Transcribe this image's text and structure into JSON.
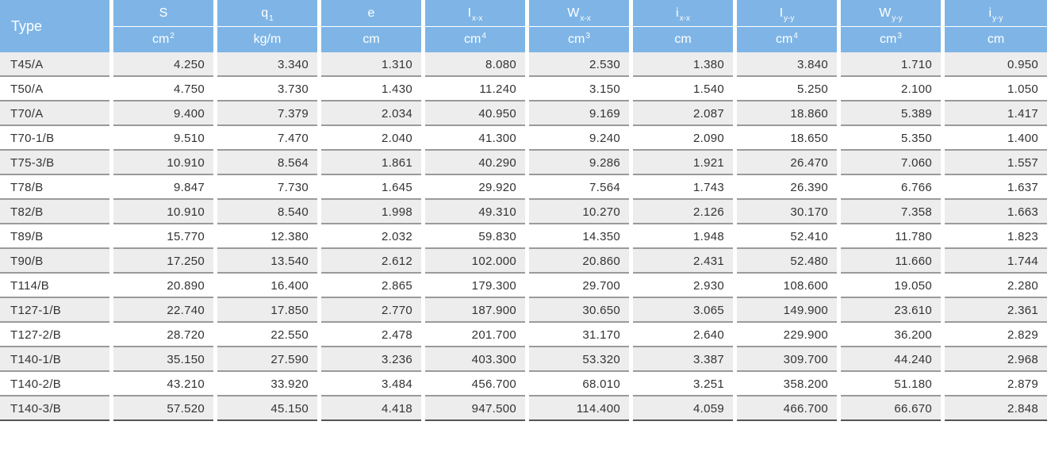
{
  "table": {
    "type_header": "Type",
    "columns": [
      {
        "key": "S",
        "symbol": "S",
        "sub": "",
        "unit": "cm",
        "unit_sup": "2"
      },
      {
        "key": "q1",
        "symbol": "q",
        "sub": "1",
        "unit": "kg/m",
        "unit_sup": ""
      },
      {
        "key": "e",
        "symbol": "e",
        "sub": "",
        "unit": "cm",
        "unit_sup": ""
      },
      {
        "key": "Ixx",
        "symbol": "I",
        "sub": "x-x",
        "unit": "cm",
        "unit_sup": "4"
      },
      {
        "key": "Wxx",
        "symbol": "W",
        "sub": "x-x",
        "unit": "cm",
        "unit_sup": "3"
      },
      {
        "key": "ixx",
        "symbol": "i",
        "sub": "x-x",
        "unit": "cm",
        "unit_sup": ""
      },
      {
        "key": "Iyy",
        "symbol": "I",
        "sub": "y-y",
        "unit": "cm",
        "unit_sup": "4"
      },
      {
        "key": "Wyy",
        "symbol": "W",
        "sub": "y-y",
        "unit": "cm",
        "unit_sup": "3"
      },
      {
        "key": "iyy",
        "symbol": "i",
        "sub": "y-y",
        "unit": "cm",
        "unit_sup": ""
      }
    ],
    "rows": [
      {
        "type": "T45/A",
        "values": [
          "4.250",
          "3.340",
          "1.310",
          "8.080",
          "2.530",
          "1.380",
          "3.840",
          "1.710",
          "0.950"
        ]
      },
      {
        "type": "T50/A",
        "values": [
          "4.750",
          "3.730",
          "1.430",
          "11.240",
          "3.150",
          "1.540",
          "5.250",
          "2.100",
          "1.050"
        ]
      },
      {
        "type": "T70/A",
        "values": [
          "9.400",
          "7.379",
          "2.034",
          "40.950",
          "9.169",
          "2.087",
          "18.860",
          "5.389",
          "1.417"
        ]
      },
      {
        "type": "T70-1/B",
        "values": [
          "9.510",
          "7.470",
          "2.040",
          "41.300",
          "9.240",
          "2.090",
          "18.650",
          "5.350",
          "1.400"
        ]
      },
      {
        "type": "T75-3/B",
        "values": [
          "10.910",
          "8.564",
          "1.861",
          "40.290",
          "9.286",
          "1.921",
          "26.470",
          "7.060",
          "1.557"
        ]
      },
      {
        "type": "T78/B",
        "values": [
          "9.847",
          "7.730",
          "1.645",
          "29.920",
          "7.564",
          "1.743",
          "26.390",
          "6.766",
          "1.637"
        ]
      },
      {
        "type": "T82/B",
        "values": [
          "10.910",
          "8.540",
          "1.998",
          "49.310",
          "10.270",
          "2.126",
          "30.170",
          "7.358",
          "1.663"
        ]
      },
      {
        "type": "T89/B",
        "values": [
          "15.770",
          "12.380",
          "2.032",
          "59.830",
          "14.350",
          "1.948",
          "52.410",
          "11.780",
          "1.823"
        ]
      },
      {
        "type": "T90/B",
        "values": [
          "17.250",
          "13.540",
          "2.612",
          "102.000",
          "20.860",
          "2.431",
          "52.480",
          "11.660",
          "1.744"
        ]
      },
      {
        "type": "T114/B",
        "values": [
          "20.890",
          "16.400",
          "2.865",
          "179.300",
          "29.700",
          "2.930",
          "108.600",
          "19.050",
          "2.280"
        ]
      },
      {
        "type": "T127-1/B",
        "values": [
          "22.740",
          "17.850",
          "2.770",
          "187.900",
          "30.650",
          "3.065",
          "149.900",
          "23.610",
          "2.361"
        ]
      },
      {
        "type": "T127-2/B",
        "values": [
          "28.720",
          "22.550",
          "2.478",
          "201.700",
          "31.170",
          "2.640",
          "229.900",
          "36.200",
          "2.829"
        ]
      },
      {
        "type": "T140-1/B",
        "values": [
          "35.150",
          "27.590",
          "3.236",
          "403.300",
          "53.320",
          "3.387",
          "309.700",
          "44.240",
          "2.968"
        ]
      },
      {
        "type": "T140-2/B",
        "values": [
          "43.210",
          "33.920",
          "3.484",
          "456.700",
          "68.010",
          "3.251",
          "358.200",
          "51.180",
          "2.879"
        ]
      },
      {
        "type": "T140-3/B",
        "values": [
          "57.520",
          "45.150",
          "4.418",
          "947.500",
          "114.400",
          "4.059",
          "466.700",
          "66.670",
          "2.848"
        ]
      }
    ],
    "colors": {
      "header_bg": "#7fb5e6",
      "header_text": "#ffffff",
      "alt_row_bg": "#ededed",
      "row_rule": "#9a9a9a",
      "text": "#333333"
    }
  }
}
